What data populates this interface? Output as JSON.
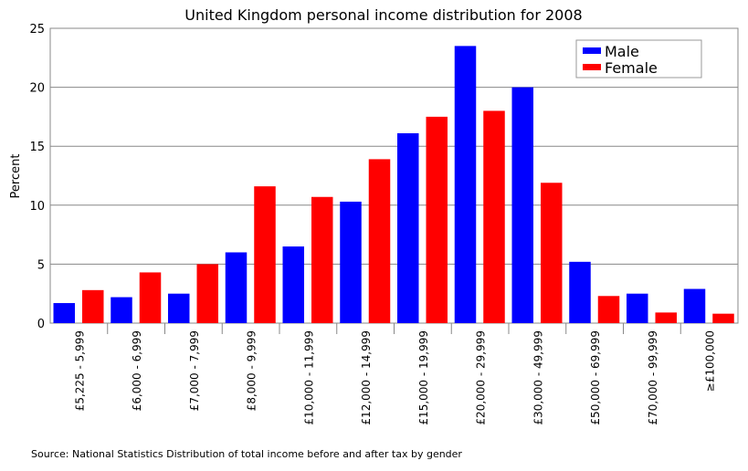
{
  "chart_data": {
    "type": "bar",
    "title": "United Kingdom personal income distribution for 2008",
    "xlabel": "",
    "ylabel": "Percent",
    "ylim": [
      0,
      25
    ],
    "yticks": [
      0,
      5,
      10,
      15,
      20,
      25
    ],
    "grid": true,
    "legend_position": "top-right",
    "categories": [
      "£5,225 - 5,999",
      "£6,000 - 6,999",
      "£7,000 - 7,999",
      "£8,000 - 9,999",
      "£10,000 - 11,999",
      "£12,000 - 14,999",
      "£15,000 - 19,999",
      "£20,000 - 29,999",
      "£30,000 - 49,999",
      "£50,000 - 69,999",
      "£70,000 - 99,999",
      "≥£100,000"
    ],
    "series": [
      {
        "name": "Male",
        "color": "#0000ff",
        "values": [
          1.7,
          2.2,
          2.5,
          6.0,
          6.5,
          10.3,
          16.1,
          23.5,
          20.0,
          5.2,
          2.5,
          2.9
        ]
      },
      {
        "name": "Female",
        "color": "#ff0000",
        "values": [
          2.8,
          4.3,
          5.0,
          11.6,
          10.7,
          13.9,
          17.5,
          18.0,
          11.9,
          2.3,
          0.9,
          0.8
        ]
      }
    ],
    "source": "Source: National Statistics Distribution of total income before and after tax by gender"
  }
}
